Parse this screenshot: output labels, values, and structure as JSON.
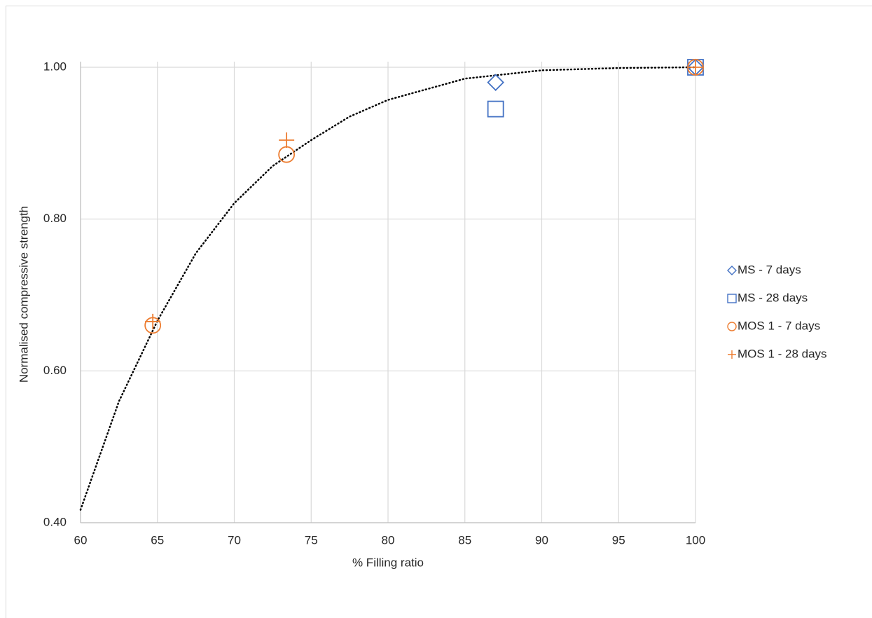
{
  "chart_data": {
    "type": "scatter",
    "x_label": "% Filling ratio",
    "y_label": "Normalised compressive strength",
    "xlim": [
      60,
      100
    ],
    "xticks": [
      60,
      65,
      70,
      75,
      80,
      85,
      90,
      95,
      100
    ],
    "ylim": [
      0.4,
      1.0
    ],
    "yticks": [
      {
        "value": 0.4,
        "label": "0.40"
      },
      {
        "value": 0.6,
        "label": "0.60"
      },
      {
        "value": 0.8,
        "label": "0.80"
      },
      {
        "value": 1.0,
        "label": "1.00"
      }
    ],
    "grid": true,
    "legend": "right",
    "series": [
      {
        "name": "MS - 7 days",
        "color": "#4472c4",
        "marker": "diamond",
        "x": [
          87,
          100
        ],
        "values": [
          0.98,
          1.0
        ]
      },
      {
        "name": "MS - 28 days",
        "color": "#4472c4",
        "marker": "square",
        "x": [
          87,
          100
        ],
        "values": [
          0.945,
          1.0
        ]
      },
      {
        "name": "MOS 1 - 7 days",
        "color": "#ed7d31",
        "marker": "circle",
        "x": [
          64.7,
          73.4,
          100
        ],
        "values": [
          0.66,
          0.885,
          1.0
        ]
      },
      {
        "name": "MOS 1 - 28 days",
        "color": "#ed7d31",
        "marker": "plus",
        "x": [
          64.7,
          73.4,
          100
        ],
        "values": [
          0.665,
          0.904,
          1.0
        ]
      }
    ],
    "trendline": {
      "color": "#000000",
      "x": [
        60,
        62.5,
        65,
        67.5,
        70,
        72.5,
        75,
        77.5,
        80,
        85,
        90,
        95,
        100
      ],
      "values": [
        0.417,
        0.56,
        0.666,
        0.755,
        0.821,
        0.87,
        0.904,
        0.935,
        0.957,
        0.985,
        0.996,
        0.999,
        1.0
      ]
    }
  }
}
